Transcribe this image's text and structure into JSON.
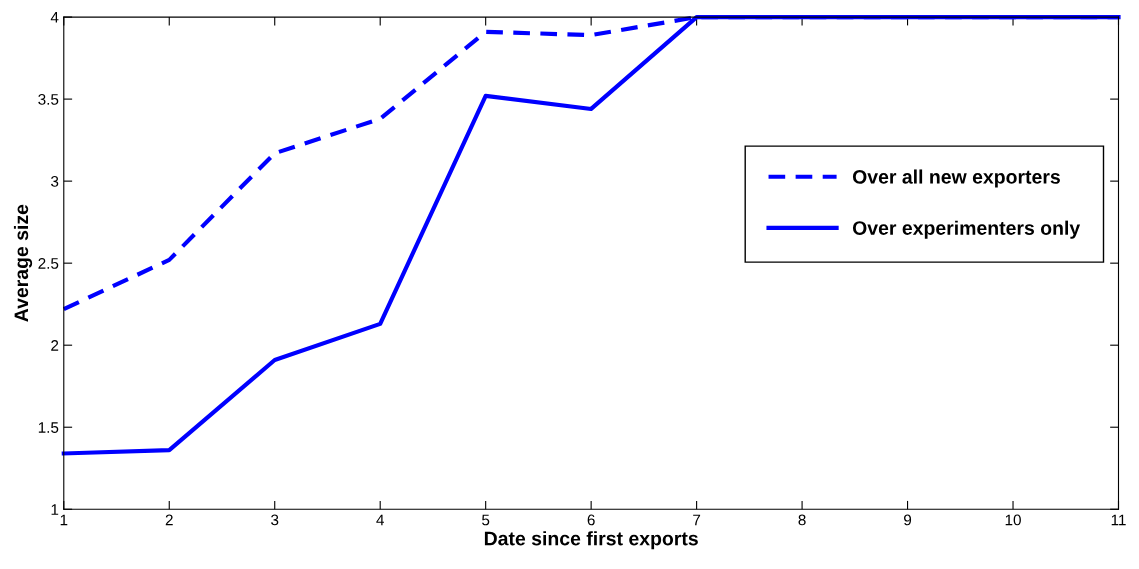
{
  "chart_data": {
    "type": "line",
    "xlabel": "Date since first exports",
    "ylabel": "Average size",
    "x": [
      1,
      2,
      3,
      4,
      5,
      6,
      7,
      8,
      9,
      10,
      11
    ],
    "series": [
      {
        "name": "Over all new exporters",
        "color": "#0000ff",
        "line_style": "dashed",
        "values": [
          2.22,
          2.52,
          3.17,
          3.38,
          3.91,
          3.89,
          4,
          4,
          4,
          4,
          4
        ]
      },
      {
        "name": "Over experimenters only",
        "color": "#0000ff",
        "line_style": "solid",
        "values": [
          1.34,
          1.36,
          1.91,
          2.13,
          3.52,
          3.44,
          4,
          4,
          4,
          4,
          4
        ]
      }
    ],
    "xlim": [
      1,
      11
    ],
    "xticks": [
      1,
      2,
      3,
      4,
      5,
      6,
      7,
      8,
      9,
      10,
      11
    ],
    "ylim": [
      1,
      4
    ],
    "yticks": [
      1,
      1.5,
      2,
      2.5,
      3,
      3.5,
      4
    ],
    "grid": false,
    "legend": "right",
    "marker": "none"
  }
}
